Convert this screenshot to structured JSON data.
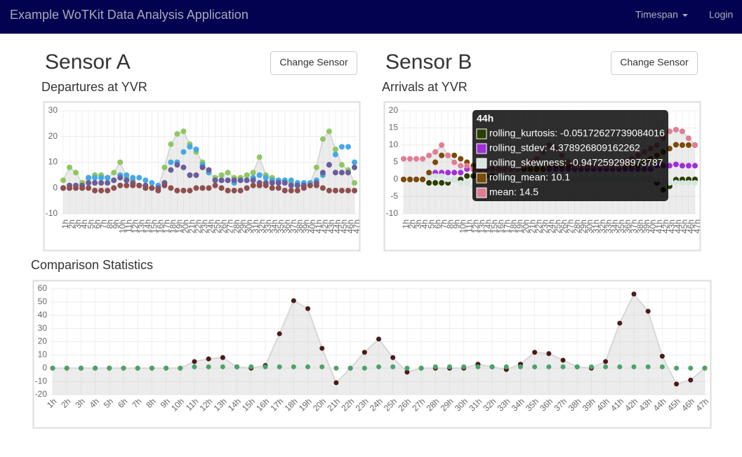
{
  "navbar": {
    "brand": "Example WoTKit Data Analysis Application",
    "menu": "Timespan",
    "login": "Login"
  },
  "panels": [
    {
      "heading": "Sensor A",
      "button": "Change Sensor"
    },
    {
      "heading": "Sensor B",
      "button": "Change Sensor"
    }
  ],
  "chart_data": [
    {
      "type": "scatter-line",
      "title": "Departures at YVR",
      "categories": [
        "1h",
        "2h",
        "3h",
        "4h",
        "5h",
        "6h",
        "7h",
        "8h",
        "9h",
        "10h",
        "11h",
        "12h",
        "13h",
        "14h",
        "15h",
        "16h",
        "17h",
        "18h",
        "19h",
        "20h",
        "21h",
        "22h",
        "23h",
        "24h",
        "25h",
        "26h",
        "27h",
        "28h",
        "29h",
        "30h",
        "31h",
        "32h",
        "33h",
        "34h",
        "35h",
        "36h",
        "37h",
        "38h",
        "39h",
        "40h",
        "41h",
        "42h",
        "43h",
        "44h",
        "45h",
        "46h",
        "47h"
      ],
      "ylim": [
        -10,
        30
      ],
      "yticks": [
        -10,
        0,
        10,
        20,
        30
      ],
      "grid": true,
      "series": [
        {
          "color": "#8dc85f",
          "values": [
            3,
            8,
            6,
            2,
            4,
            5,
            5,
            4,
            6,
            10,
            4,
            3,
            1,
            1,
            0,
            0,
            8,
            17,
            21,
            22,
            17,
            14,
            10,
            6,
            4,
            5,
            6,
            4,
            4,
            5,
            6,
            12,
            5,
            4,
            3,
            3,
            2,
            1,
            1,
            2,
            8,
            19,
            22,
            15,
            9,
            7,
            2
          ]
        },
        {
          "color": "#45a8e8",
          "values": [
            0,
            0,
            0,
            0,
            4,
            4,
            4,
            4,
            3,
            5,
            5,
            4,
            4,
            3,
            2,
            1,
            2,
            10,
            10,
            14,
            16,
            15,
            9,
            6,
            3,
            3,
            3,
            2,
            3,
            3,
            4,
            5,
            4,
            3,
            3,
            3,
            3,
            2,
            2,
            2,
            3,
            5,
            9,
            13,
            16,
            16,
            10
          ]
        },
        {
          "color": "#6a5d9c",
          "values": [
            0,
            1,
            1,
            1,
            2,
            2,
            2,
            2,
            3,
            4,
            3,
            2,
            1,
            1,
            0,
            0,
            2,
            7,
            9,
            8,
            5,
            5,
            8,
            7,
            3,
            3,
            3,
            3,
            3,
            3,
            3,
            2,
            2,
            2,
            2,
            2,
            1,
            1,
            1,
            1,
            2,
            6,
            9,
            6,
            6,
            6,
            8
          ]
        },
        {
          "color": "#8f4f4f",
          "values": [
            0,
            0,
            0,
            0,
            0,
            -1,
            -1,
            -1,
            0,
            1,
            1,
            1,
            1,
            0,
            0,
            -1,
            1,
            0,
            -1,
            -1,
            -1,
            0,
            0,
            0,
            1,
            0,
            -1,
            -1,
            -1,
            0,
            1,
            1,
            1,
            0,
            0,
            -1,
            -1,
            -1,
            0,
            1,
            1,
            0,
            -1,
            -1,
            -1,
            -1,
            -1
          ]
        }
      ]
    },
    {
      "type": "scatter-line",
      "title": "Arrivals at YVR",
      "categories": [
        "1h",
        "2h",
        "3h",
        "4h",
        "5h",
        "6h",
        "7h",
        "8h",
        "9h",
        "10h",
        "11h",
        "12h",
        "13h",
        "14h",
        "15h",
        "16h",
        "17h",
        "18h",
        "19h",
        "20h",
        "21h",
        "22h",
        "23h",
        "24h",
        "25h",
        "26h",
        "27h",
        "28h",
        "29h",
        "30h",
        "31h",
        "32h",
        "33h",
        "34h",
        "35h",
        "36h",
        "37h",
        "38h",
        "39h",
        "40h",
        "41h",
        "42h",
        "43h",
        "44h",
        "45h",
        "46h",
        "47h"
      ],
      "ylim": [
        -10,
        20
      ],
      "yticks": [
        -10,
        -5,
        0,
        5,
        10,
        15,
        20
      ],
      "grid": true,
      "series": [
        {
          "name": "rolling_kurtosis",
          "color": "#2b3f00",
          "values": [
            0,
            0,
            0,
            0,
            -1,
            -1,
            -1,
            -1,
            0,
            0,
            1,
            1,
            1,
            1,
            1,
            0,
            0,
            0,
            0,
            0,
            0,
            0,
            0,
            0,
            0,
            0,
            0,
            0,
            0,
            0,
            0,
            0,
            0,
            0,
            0,
            0,
            0,
            0,
            0,
            0,
            -1,
            -3,
            -2,
            -0.05172627739084016,
            0,
            0,
            0
          ]
        },
        {
          "name": "rolling_stdev",
          "color": "#a02fd8",
          "values": [
            0,
            0,
            0,
            0,
            1,
            2,
            2,
            2,
            2,
            2,
            3,
            3,
            3,
            3,
            3,
            3,
            3,
            3,
            3,
            3,
            3,
            3,
            3,
            3,
            3,
            3,
            3,
            3,
            3,
            3,
            3,
            3,
            3,
            3,
            3,
            3,
            3,
            3,
            3,
            3,
            4,
            4,
            4,
            4.378926809162262,
            4,
            4,
            4
          ]
        },
        {
          "name": "rolling_skewness",
          "color": "#d5e6df",
          "values": [
            0,
            0,
            0,
            0,
            1,
            1,
            1,
            0,
            0,
            -1,
            -1,
            -2,
            -2,
            -1,
            -1,
            -1,
            0,
            0,
            0,
            0,
            0,
            0,
            0,
            0,
            0,
            0,
            0,
            0,
            0,
            0,
            0,
            0,
            0,
            0,
            0,
            0,
            0,
            0,
            0,
            0,
            0,
            -1,
            -1,
            -0.947259298973787,
            -1,
            -1,
            -1
          ]
        },
        {
          "name": "rolling_mean",
          "color": "#7b4a07",
          "values": [
            0,
            0,
            0,
            0,
            2,
            5,
            7,
            7,
            7,
            6,
            5,
            4,
            3,
            3,
            3,
            3,
            3,
            3,
            3,
            3,
            3,
            3,
            3,
            4,
            4,
            4,
            4,
            4,
            4,
            4,
            4,
            4,
            4,
            4,
            4,
            4,
            4,
            4,
            5,
            6,
            7,
            8,
            9,
            10.1,
            10,
            10,
            10
          ]
        },
        {
          "name": "mean",
          "color": "#e07d95",
          "values": [
            6,
            6,
            6,
            6,
            7,
            8,
            10,
            7,
            5,
            4,
            4,
            3,
            3,
            3,
            3,
            3,
            3,
            3,
            3,
            4,
            5,
            6,
            8,
            10,
            9,
            7,
            5,
            4,
            4,
            4,
            4,
            4,
            4,
            4,
            4,
            5,
            6,
            7,
            8,
            9,
            10,
            12,
            14,
            14.5,
            14,
            12,
            10
          ]
        }
      ]
    },
    {
      "type": "scatter-line",
      "title": "Comparison Statistics",
      "categories": [
        "1h",
        "2h",
        "3h",
        "4h",
        "5h",
        "6h",
        "7h",
        "8h",
        "9h",
        "10h",
        "11h",
        "12h",
        "13h",
        "14h",
        "15h",
        "16h",
        "17h",
        "18h",
        "19h",
        "20h",
        "21h",
        "22h",
        "23h",
        "24h",
        "25h",
        "26h",
        "27h",
        "28h",
        "29h",
        "30h",
        "31h",
        "32h",
        "33h",
        "34h",
        "35h",
        "36h",
        "37h",
        "38h",
        "39h",
        "40h",
        "41h",
        "42h",
        "43h",
        "44h",
        "45h",
        "46h",
        "47h"
      ],
      "ylim": [
        -20,
        60
      ],
      "yticks": [
        -20,
        -10,
        0,
        10,
        20,
        30,
        40,
        50,
        60
      ],
      "grid": true,
      "series": [
        {
          "color": "#4d1a1a",
          "values": [
            0,
            0,
            0,
            0,
            0,
            0,
            0,
            0,
            0,
            0,
            5,
            7,
            8,
            1,
            0,
            2,
            26,
            51,
            45,
            15,
            -11,
            0,
            12,
            22,
            8,
            -3,
            0,
            0,
            0,
            0,
            3,
            1,
            -1,
            3,
            12,
            11,
            6,
            1,
            0,
            5,
            34,
            56,
            43,
            9,
            -12,
            -9,
            0
          ]
        },
        {
          "color": "#4ca36a",
          "values": [
            0,
            0,
            0,
            0,
            0,
            0,
            0,
            0,
            0,
            0,
            1,
            1,
            1,
            1,
            1,
            1,
            1,
            1,
            1,
            1,
            0,
            0,
            0,
            1,
            1,
            0,
            0,
            1,
            1,
            1,
            1,
            1,
            1,
            1,
            1,
            1,
            1,
            1,
            1,
            1,
            1,
            1,
            1,
            1,
            0,
            0,
            0
          ]
        }
      ]
    }
  ],
  "tooltip": {
    "title": "44h",
    "items": [
      "rolling_kurtosis: -0.05172627739084016",
      "rolling_stdev: 4.378926809162262",
      "rolling_skewness: -0.947259298973787",
      "rolling_mean: 10.1",
      "mean: 14.5"
    ]
  }
}
